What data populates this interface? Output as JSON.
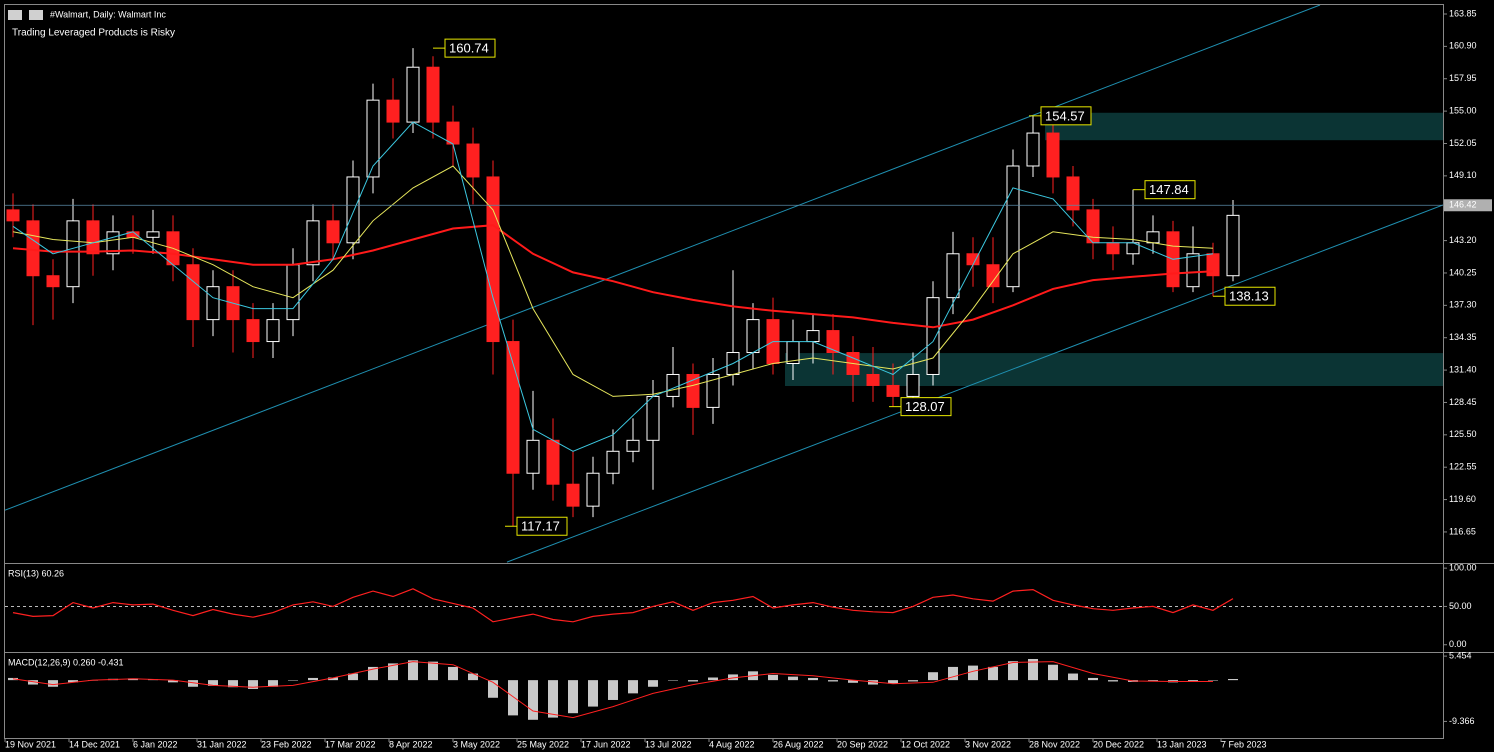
{
  "chart_data": [
    {
      "type": "candlestick",
      "title": "#Walmart, Daily:  Walmart Inc",
      "subtitle": "Trading Leveraged Products is Risky",
      "up_color": "#ffffff",
      "down_color": "#ff2020",
      "x": [
        2,
        7,
        12,
        17,
        22,
        27,
        32,
        37,
        42,
        47,
        52,
        57,
        62,
        67,
        72,
        77,
        82,
        87,
        92,
        97,
        102,
        107,
        112,
        117,
        122,
        127,
        132,
        137,
        142,
        147,
        152,
        157,
        162,
        167,
        172,
        177,
        182,
        187,
        192,
        197,
        202,
        207,
        212,
        217,
        222,
        227,
        232,
        237,
        242,
        247,
        252,
        257,
        262,
        267,
        272,
        277,
        282,
        287,
        292,
        297,
        302,
        307
      ],
      "open": [
        146,
        145,
        140,
        139,
        145,
        142,
        144,
        143.5,
        144,
        141,
        136,
        139,
        136,
        134,
        136,
        141,
        145,
        143,
        149,
        156,
        154,
        159,
        154,
        152,
        149,
        134,
        122,
        125,
        121,
        119,
        122,
        124,
        125,
        129,
        131,
        128,
        131,
        133,
        136,
        132,
        134,
        135,
        133,
        131,
        130,
        129,
        131,
        138,
        142,
        141,
        139,
        150,
        153,
        149,
        146,
        143,
        142,
        143,
        144,
        139,
        142,
        140
      ],
      "high": [
        147.5,
        146.5,
        141.5,
        147,
        146.5,
        145.5,
        145.5,
        146,
        145.5,
        142.5,
        140.5,
        140.5,
        137.5,
        137.5,
        142.5,
        146.5,
        146.5,
        150.5,
        157.5,
        158,
        160.74,
        160,
        155.5,
        153.5,
        150.5,
        136,
        129.5,
        127,
        124,
        123.5,
        126,
        127,
        130.5,
        133.5,
        132,
        132.5,
        140.5,
        137.5,
        138,
        136,
        136.5,
        136.5,
        134.5,
        133.5,
        132,
        133,
        139.5,
        144,
        143.5,
        143.5,
        151.5,
        154.57,
        154,
        150,
        147,
        144.5,
        147.84,
        145.5,
        145,
        144.5,
        143,
        146.9
      ],
      "low": [
        143.5,
        135.5,
        136,
        137.5,
        140,
        140.5,
        142,
        142,
        139.5,
        133.5,
        134.5,
        133,
        132.5,
        132.5,
        134.5,
        139.5,
        141.5,
        141.5,
        147.5,
        152.5,
        153,
        152.5,
        150,
        146.5,
        131,
        117.17,
        120.5,
        119.5,
        118,
        118,
        121,
        123,
        120.5,
        128,
        125.5,
        126.5,
        130,
        131.5,
        131,
        130.5,
        132,
        131,
        128.5,
        128.5,
        128.07,
        128.5,
        130,
        136.5,
        139,
        137.5,
        138.5,
        149,
        147.5,
        144.5,
        141.5,
        140.5,
        141,
        142,
        138.5,
        138.5,
        138.13,
        139.5
      ],
      "close": [
        145,
        140,
        139,
        145,
        142,
        144,
        143.5,
        144,
        141,
        136,
        139,
        136,
        134,
        136,
        141,
        145,
        143,
        149,
        156,
        154,
        159,
        154,
        152,
        149,
        134,
        122,
        125,
        121,
        119,
        122,
        124,
        125,
        129,
        131,
        128,
        131,
        133,
        136,
        132,
        134,
        135,
        133,
        131,
        130,
        129,
        131,
        138,
        142,
        141,
        139,
        150,
        153,
        149,
        146,
        143,
        142,
        143,
        144,
        139,
        142,
        140,
        145.5
      ],
      "series": [
        {
          "color": "#ff1a1a",
          "x": [
            2,
            12,
            22,
            32,
            42,
            52,
            62,
            72,
            82,
            92,
            102,
            112,
            122,
            132,
            142,
            152,
            162,
            172,
            182,
            192,
            202,
            212,
            222,
            232,
            242,
            252,
            262,
            272,
            282,
            292,
            302
          ],
          "values": [
            142.5,
            142.2,
            142.2,
            142.3,
            142.0,
            141.5,
            141.0,
            141.0,
            141.5,
            142.3,
            143.3,
            144.3,
            144.6,
            142,
            140.3,
            139.5,
            138.5,
            137.8,
            137.2,
            136.8,
            136.5,
            136.2,
            135.7,
            135.3,
            136.0,
            137.3,
            138.8,
            139.6,
            139.9,
            140.2,
            140.4
          ]
        },
        {
          "color": "#e6e65c",
          "x": [
            2,
            12,
            22,
            32,
            42,
            52,
            62,
            72,
            82,
            92,
            102,
            112,
            122,
            132,
            142,
            152,
            162,
            172,
            182,
            192,
            202,
            212,
            222,
            232,
            242,
            252,
            262,
            272,
            282,
            292,
            302
          ],
          "values": [
            144,
            143.3,
            143,
            143.5,
            142.5,
            141,
            139,
            138,
            140.5,
            145,
            148,
            150,
            146,
            137,
            131,
            129,
            129.2,
            130,
            131,
            132,
            132.5,
            132,
            131.5,
            132.5,
            137,
            142,
            144,
            143.5,
            143.3,
            142.7,
            142.5
          ]
        },
        {
          "color": "#3cc8e0",
          "x": [
            2,
            12,
            22,
            32,
            42,
            52,
            62,
            72,
            82,
            92,
            102,
            112,
            122,
            132,
            142,
            152,
            162,
            172,
            182,
            192,
            202,
            212,
            222,
            232,
            242,
            252,
            262,
            272,
            282,
            292,
            302
          ],
          "values": [
            144.5,
            142,
            143,
            144,
            141,
            138,
            137,
            137,
            141.5,
            150,
            154,
            152,
            138,
            126,
            124,
            125.5,
            129,
            130.5,
            132,
            134,
            134,
            132.5,
            131,
            134,
            141,
            148,
            147,
            143,
            143,
            141.5,
            142
          ]
        }
      ],
      "zones": [
        {
          "low": 152.35,
          "high": 154.85,
          "start": 260,
          "color": "#0b3434"
        },
        {
          "low": 129.95,
          "high": 132.95,
          "start": 195,
          "color": "#0b3434"
        }
      ],
      "trendlines": [
        {
          "x": [
            125.5,
            359.5
          ],
          "values": [
            113.9,
            146.44
          ],
          "color": "#1f8fb0"
        },
        {
          "x": [
            0,
            328.75
          ],
          "values": [
            118.63,
            164.67
          ],
          "color": "#1f8fb0"
        }
      ],
      "annotations": [
        {
          "x": 107,
          "value": 160.74
        },
        {
          "x": 125,
          "value": 117.17
        },
        {
          "x": 221,
          "value": 128.07
        },
        {
          "x": 256,
          "value": 154.57
        },
        {
          "x": 282,
          "value": 147.84
        },
        {
          "x": 302,
          "value": 138.13
        }
      ],
      "last_price": 146.42,
      "xlim": [
        0,
        359.5
      ],
      "xticks": [
        {
          "value": 0,
          "label": "19 Nov 2021"
        },
        {
          "value": 16,
          "label": "14 Dec 2021"
        },
        {
          "value": 32,
          "label": "6 Jan 2022"
        },
        {
          "value": 48,
          "label": "31 Jan 2022"
        },
        {
          "value": 64,
          "label": "23 Feb 2022"
        },
        {
          "value": 80,
          "label": "17 Mar 2022"
        },
        {
          "value": 96,
          "label": "8 Apr 2022"
        },
        {
          "value": 112,
          "label": "3 May 2022"
        },
        {
          "value": 128,
          "label": "25 May 2022"
        },
        {
          "value": 144,
          "label": "17 Jun 2022"
        },
        {
          "value": 160,
          "label": "13 Jul 2022"
        },
        {
          "value": 176,
          "label": "4 Aug 2022"
        },
        {
          "value": 192,
          "label": "26 Aug 2022"
        },
        {
          "value": 208,
          "label": "20 Sep 2022"
        },
        {
          "value": 224,
          "label": "12 Oct 2022"
        },
        {
          "value": 240,
          "label": "3 Nov 2022"
        },
        {
          "value": 256,
          "label": "28 Nov 2022"
        },
        {
          "value": 272,
          "label": "20 Dec 2022"
        },
        {
          "value": 288,
          "label": "13 Jan 2023"
        },
        {
          "value": 304,
          "label": "7 Feb 2023"
        }
      ],
      "ylim": [
        113.82,
        164.67
      ],
      "yticks": [
        163.85,
        {
          "value": 160.9,
          "label": "160.90"
        },
        157.95,
        {
          "value": 155,
          "label": "155.00"
        },
        152.05,
        {
          "value": 149.1,
          "label": "149.10"
        },
        {
          "value": 143.2,
          "label": "143.20"
        },
        140.25,
        {
          "value": 137.3,
          "label": "137.30"
        },
        134.35,
        {
          "value": 131.4,
          "label": "131.40"
        },
        128.45,
        {
          "value": 125.5,
          "label": "125.50"
        },
        122.55,
        {
          "value": 119.6,
          "label": "119.60"
        },
        116.65
      ]
    },
    {
      "type": "line",
      "title": "RSI(13) 60.26",
      "color": "#ff2020",
      "x": [
        2,
        7,
        12,
        17,
        22,
        27,
        32,
        37,
        42,
        47,
        52,
        57,
        62,
        67,
        72,
        77,
        82,
        87,
        92,
        97,
        102,
        107,
        112,
        117,
        122,
        127,
        132,
        137,
        142,
        147,
        152,
        157,
        162,
        167,
        172,
        177,
        182,
        187,
        192,
        197,
        202,
        207,
        212,
        217,
        222,
        227,
        232,
        237,
        242,
        247,
        252,
        257,
        262,
        267,
        272,
        277,
        282,
        287,
        292,
        297,
        302,
        307
      ],
      "values": [
        42,
        37,
        38,
        55,
        48,
        55,
        52,
        53,
        45,
        38,
        46,
        40,
        36,
        42,
        52,
        56,
        50,
        62,
        70,
        63,
        73,
        60,
        54,
        48,
        30,
        35,
        40,
        33,
        30,
        37,
        40,
        42,
        50,
        56,
        45,
        55,
        58,
        63,
        48,
        52,
        55,
        49,
        45,
        43,
        42,
        50,
        62,
        65,
        60,
        57,
        70,
        72,
        58,
        52,
        47,
        45,
        48,
        50,
        42,
        52,
        45,
        60.26
      ],
      "level": 50,
      "xlim": [
        0,
        359.5
      ],
      "ylim": [
        -9.46,
        105.4
      ],
      "yticks": [
        {
          "value": 100,
          "label": "100.00"
        },
        {
          "value": 50,
          "label": "50.00"
        },
        {
          "value": 0,
          "label": "0.00"
        }
      ]
    },
    {
      "type": "macd",
      "title": "MACD(12,26,9) 0.260 -0.431",
      "color": "#c8c8c8",
      "x": [
        2,
        7,
        12,
        17,
        22,
        27,
        32,
        37,
        42,
        47,
        52,
        57,
        62,
        67,
        72,
        77,
        82,
        87,
        92,
        97,
        102,
        107,
        112,
        117,
        122,
        127,
        132,
        137,
        142,
        147,
        152,
        157,
        162,
        167,
        172,
        177,
        182,
        187,
        192,
        197,
        202,
        207,
        212,
        217,
        222,
        227,
        232,
        237,
        242,
        247,
        252,
        257,
        262,
        267,
        272,
        277,
        282,
        287,
        292,
        297,
        302,
        307
      ],
      "values": [
        0.5,
        -1,
        -1.5,
        -0.5,
        0,
        0.3,
        0.4,
        0.2,
        -0.5,
        -1.5,
        -1.3,
        -1.6,
        -2,
        -1.5,
        0,
        0.5,
        0.6,
        1.5,
        3,
        3.8,
        4.5,
        4.2,
        3,
        1.5,
        -4,
        -8,
        -9,
        -8.5,
        -7.5,
        -6,
        -4.5,
        -3,
        -1.5,
        0,
        -0.3,
        0.6,
        1.3,
        2,
        1.2,
        0.8,
        0.5,
        -0.3,
        -0.6,
        -1,
        -0.8,
        -0.3,
        1.8,
        3,
        3.3,
        3,
        4.3,
        4.8,
        3.5,
        1.5,
        0.5,
        -0.3,
        -0.4,
        -0.2,
        -0.5,
        -0.3,
        -0.1,
        0.26
      ],
      "signal": {
        "color": "#ff2020",
        "x": [
          2,
          12,
          22,
          32,
          42,
          52,
          62,
          72,
          82,
          92,
          102,
          112,
          122,
          132,
          142,
          152,
          162,
          172,
          182,
          192,
          202,
          212,
          222,
          232,
          242,
          252,
          262,
          272,
          282,
          292,
          302
        ],
        "values": [
          0.3,
          -1,
          0,
          0.3,
          0,
          -1.2,
          -1.6,
          -1.2,
          0.5,
          2.5,
          4.2,
          3.5,
          -0.5,
          -7,
          -8.5,
          -6,
          -3,
          -1,
          0.5,
          1.5,
          1,
          0,
          -0.8,
          -0.5,
          2,
          4,
          4.2,
          1.5,
          -0.2,
          -0.3,
          -0.3
        ]
      },
      "xlim": [
        0,
        359.5
      ],
      "ylim": [
        -13.13,
        6.16
      ],
      "yticks": [
        5.454,
        -9.366
      ]
    }
  ]
}
